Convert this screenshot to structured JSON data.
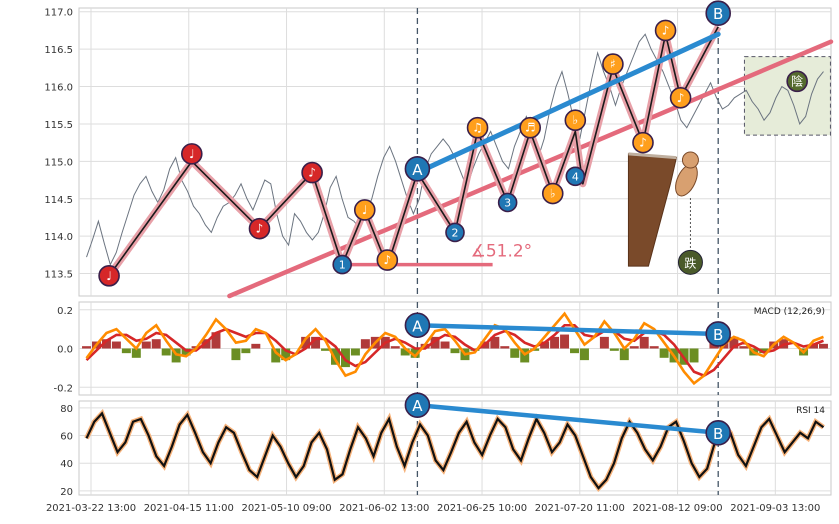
{
  "chart_data": [
    {
      "type": "line",
      "panel": "price",
      "ylim": [
        113.2,
        117.05
      ],
      "y_ticks": [
        113.5,
        114.0,
        114.5,
        115.0,
        115.5,
        116.0,
        116.5,
        117.0
      ],
      "y_tick_labels": [
        "113.5",
        "114.0",
        "114.5",
        "115.0",
        "115.5",
        "116.0",
        "116.5",
        "117.0"
      ],
      "series": [
        {
          "role": "price",
          "values": [
            113.72,
            113.95,
            114.2,
            113.9,
            113.62,
            113.78,
            114.05,
            114.3,
            114.55,
            114.7,
            114.8,
            114.6,
            114.45,
            114.62,
            114.9,
            115.05,
            114.75,
            114.6,
            114.4,
            114.3,
            114.15,
            114.05,
            114.25,
            114.4,
            114.45,
            114.55,
            114.7,
            114.5,
            114.35,
            114.55,
            114.75,
            114.7,
            114.3,
            114.0,
            113.88,
            114.3,
            114.2,
            114.05,
            113.95,
            114.05,
            114.3,
            114.65,
            114.8,
            114.5,
            114.25,
            114.2,
            114.1,
            114.3,
            114.5,
            114.8,
            115.05,
            115.2,
            115.0,
            114.75,
            114.5,
            114.3,
            114.5,
            114.9,
            115.1,
            115.2,
            115.3,
            115.2,
            115.05,
            114.85,
            114.65,
            114.9,
            115.1,
            115.25,
            115.4,
            115.2,
            115.0,
            114.9,
            115.2,
            115.4,
            115.6,
            115.4,
            115.05,
            115.3,
            115.7,
            116.0,
            116.2,
            115.9,
            115.55,
            115.3,
            115.7,
            116.1,
            116.45,
            116.2,
            116.0,
            115.75,
            116.0,
            116.2,
            116.4,
            116.6,
            116.7,
            116.5,
            116.35,
            116.2,
            116.0,
            115.8,
            115.55,
            115.45,
            115.6,
            115.75,
            115.9,
            116.05,
            115.85,
            115.7,
            115.75,
            115.85,
            115.9,
            115.95,
            115.8,
            115.7,
            115.55,
            115.65,
            115.85,
            116.0,
            115.95,
            115.75,
            115.5,
            115.6,
            115.9,
            116.1,
            116.2
          ]
        },
        {
          "role": "zigzag",
          "points": [
            [
              0.04,
              113.47
            ],
            [
              0.15,
              115.0
            ],
            [
              0.24,
              114.1
            ],
            [
              0.31,
              114.85
            ],
            [
              0.35,
              113.62
            ],
            [
              0.38,
              114.35
            ],
            [
              0.41,
              113.6
            ],
            [
              0.45,
              114.85
            ],
            [
              0.5,
              114.05
            ],
            [
              0.53,
              115.4
            ],
            [
              0.57,
              114.45
            ],
            [
              0.6,
              115.4
            ],
            [
              0.63,
              114.57
            ],
            [
              0.66,
              115.4
            ],
            [
              0.67,
              114.7
            ],
            [
              0.71,
              116.25
            ],
            [
              0.75,
              115.25
            ],
            [
              0.78,
              116.7
            ],
            [
              0.8,
              115.85
            ],
            [
              0.85,
              116.8
            ]
          ]
        },
        {
          "role": "trend",
          "from": [
            0.45,
            114.85
          ],
          "to": [
            0.85,
            116.7
          ]
        },
        {
          "role": "trend",
          "from": [
            0.2,
            113.2
          ],
          "to": [
            1.0,
            116.6
          ]
        },
        {
          "role": "horizontal",
          "from": [
            0.35,
            113.62
          ],
          "to": [
            0.55,
            113.62
          ]
        }
      ],
      "annotation_angle": "∡51.2°",
      "markers": [
        {
          "x": 0.04,
          "y": 113.47,
          "glyph": "♩",
          "fill": "#d62728"
        },
        {
          "x": 0.15,
          "y": 115.1,
          "glyph": "♩",
          "fill": "#d62728"
        },
        {
          "x": 0.24,
          "y": 114.1,
          "glyph": "♪",
          "fill": "#d62728"
        },
        {
          "x": 0.31,
          "y": 114.85,
          "glyph": "♪",
          "fill": "#d62728"
        },
        {
          "x": 0.35,
          "y": 113.62,
          "glyph": "1",
          "fill": "#1f77b4"
        },
        {
          "x": 0.38,
          "y": 114.35,
          "glyph": "♩",
          "fill": "#ff9f1c"
        },
        {
          "x": 0.41,
          "y": 113.68,
          "glyph": "♪",
          "fill": "#ff9f1c"
        },
        {
          "x": 0.45,
          "y": 114.9,
          "glyph": "A",
          "fill": "#1f77b4"
        },
        {
          "x": 0.5,
          "y": 114.05,
          "glyph": "2",
          "fill": "#1f77b4"
        },
        {
          "x": 0.53,
          "y": 115.45,
          "glyph": "♫",
          "fill": "#ff9f1c"
        },
        {
          "x": 0.57,
          "y": 114.45,
          "glyph": "3",
          "fill": "#1f77b4"
        },
        {
          "x": 0.6,
          "y": 115.45,
          "glyph": "♬",
          "fill": "#ff9f1c"
        },
        {
          "x": 0.63,
          "y": 114.57,
          "glyph": "♭",
          "fill": "#ff9f1c"
        },
        {
          "x": 0.66,
          "y": 115.55,
          "glyph": "♭",
          "fill": "#ff9f1c"
        },
        {
          "x": 0.66,
          "y": 114.8,
          "glyph": "4",
          "fill": "#1f77b4"
        },
        {
          "x": 0.71,
          "y": 116.3,
          "glyph": "♯",
          "fill": "#ff9f1c"
        },
        {
          "x": 0.75,
          "y": 115.25,
          "glyph": "♪",
          "fill": "#ff9f1c"
        },
        {
          "x": 0.78,
          "y": 116.75,
          "glyph": "♪",
          "fill": "#ff9f1c"
        },
        {
          "x": 0.8,
          "y": 115.85,
          "glyph": "♪",
          "fill": "#ff9f1c"
        },
        {
          "x": 0.85,
          "y": 116.98,
          "glyph": "B",
          "fill": "#1f77b4"
        },
        {
          "x": 0.955,
          "y": 116.07,
          "glyph": "陰",
          "fill": "#556b2f"
        }
      ],
      "dashed_vlines_x": [
        0.45,
        0.85
      ]
    },
    {
      "type": "line",
      "panel": "macd",
      "title": "MACD (12,26,9)",
      "ylim": [
        -0.24,
        0.24
      ],
      "y_ticks": [
        -0.2,
        0.0,
        0.2
      ],
      "y_tick_labels": [
        "-0.2",
        "0.0",
        "0.2"
      ],
      "series": [
        {
          "role": "macd",
          "color": "#ff8c00",
          "values": [
            -0.05,
            0.02,
            0.08,
            0.1,
            0.05,
            0.0,
            0.08,
            0.12,
            0.04,
            -0.03,
            -0.04,
            0.0,
            0.07,
            0.15,
            0.1,
            0.03,
            0.04,
            0.1,
            0.08,
            -0.02,
            -0.06,
            -0.03,
            0.05,
            0.1,
            0.04,
            -0.06,
            -0.14,
            -0.12,
            -0.03,
            0.03,
            0.08,
            0.06,
            0.0,
            -0.04,
            0.02,
            0.09,
            0.1,
            0.04,
            -0.03,
            -0.02,
            0.05,
            0.12,
            0.1,
            0.03,
            -0.03,
            0.0,
            0.06,
            0.12,
            0.18,
            0.1,
            0.02,
            0.06,
            0.14,
            0.08,
            0.0,
            0.05,
            0.13,
            0.1,
            0.03,
            -0.04,
            -0.12,
            -0.18,
            -0.14,
            -0.06,
            0.02,
            0.06,
            0.04,
            -0.02,
            -0.04,
            0.02,
            0.06,
            0.03,
            -0.02,
            0.04,
            0.06
          ]
        },
        {
          "role": "signal",
          "color": "#d62728",
          "values": [
            -0.06,
            -0.01,
            0.04,
            0.07,
            0.07,
            0.04,
            0.05,
            0.08,
            0.07,
            0.03,
            -0.01,
            -0.01,
            0.03,
            0.08,
            0.1,
            0.08,
            0.06,
            0.08,
            0.08,
            0.04,
            -0.01,
            -0.03,
            0.0,
            0.05,
            0.05,
            0.01,
            -0.06,
            -0.09,
            -0.07,
            -0.02,
            0.03,
            0.05,
            0.03,
            0.0,
            0.0,
            0.04,
            0.07,
            0.06,
            0.02,
            -0.01,
            0.02,
            0.07,
            0.09,
            0.07,
            0.03,
            0.01,
            0.03,
            0.07,
            0.12,
            0.12,
            0.07,
            0.06,
            0.09,
            0.09,
            0.05,
            0.04,
            0.08,
            0.09,
            0.07,
            0.02,
            -0.05,
            -0.12,
            -0.14,
            -0.11,
            -0.05,
            0.01,
            0.03,
            0.01,
            -0.02,
            -0.01,
            0.02,
            0.03,
            0.01,
            0.02,
            0.04
          ]
        }
      ],
      "divergence": [
        [
          0.45,
          0.12
        ],
        [
          0.85,
          0.075
        ]
      ],
      "markers": [
        {
          "x": 0.45,
          "y": 0.12,
          "glyph": "A",
          "fill": "#1f77b4"
        },
        {
          "x": 0.85,
          "y": 0.075,
          "glyph": "B",
          "fill": "#1f77b4"
        }
      ]
    },
    {
      "type": "line",
      "panel": "rsi",
      "title": "RSI 14",
      "ylim": [
        17,
        85
      ],
      "y_ticks": [
        20,
        40,
        60,
        80
      ],
      "y_tick_labels": [
        "20",
        "40",
        "60",
        "80"
      ],
      "series": [
        {
          "role": "rsi",
          "values": [
            58,
            70,
            76,
            62,
            48,
            55,
            70,
            72,
            60,
            45,
            38,
            52,
            68,
            75,
            62,
            48,
            40,
            55,
            66,
            62,
            48,
            35,
            30,
            45,
            60,
            52,
            40,
            30,
            38,
            55,
            62,
            50,
            28,
            32,
            50,
            66,
            58,
            45,
            62,
            72,
            52,
            38,
            55,
            68,
            60,
            42,
            35,
            48,
            62,
            70,
            55,
            46,
            60,
            72,
            66,
            50,
            42,
            58,
            72,
            62,
            48,
            55,
            68,
            60,
            45,
            30,
            22,
            28,
            40,
            58,
            70,
            62,
            50,
            42,
            52,
            66,
            70,
            56,
            40,
            30,
            36,
            55,
            68,
            62,
            46,
            38,
            52,
            66,
            72,
            60,
            48,
            55,
            62,
            58,
            70,
            66
          ]
        }
      ],
      "divergence": [
        [
          0.45,
          82
        ],
        [
          0.85,
          62
        ]
      ],
      "markers": [
        {
          "x": 0.45,
          "y": 82,
          "glyph": "A",
          "fill": "#1f77b4"
        },
        {
          "x": 0.85,
          "y": 62,
          "glyph": "B",
          "fill": "#1f77b4"
        }
      ]
    }
  ],
  "x_axis": {
    "labels": [
      "2021-03-22 13:00",
      "2021-04-15 11:00",
      "2021-05-10 09:00",
      "2021-06-02 13:00",
      "2021-06-25 10:00",
      "2021-07-20 11:00",
      "2021-08-12 09:00",
      "2021-09-03 13:00"
    ],
    "label_positions": [
      0.0,
      0.13,
      0.26,
      0.39,
      0.52,
      0.65,
      0.78,
      0.91
    ]
  },
  "colors": {
    "price": "#6b7480",
    "zigzag_outer": "#e8a0a8",
    "zigzag_inner": "#1a1a1a",
    "trend_blue": "#2a8ad0",
    "trend_pink": "#e46a7c",
    "grid": "#dddddd",
    "bar_pos": "#b03a3a",
    "bar_neg": "#6b8e23",
    "rsi_glow": "#f6b27a",
    "rsi_line": "#111111"
  },
  "decor": {
    "cliff_icon": "cliff",
    "dog_icon": "dog",
    "bottom_badge": "跌"
  }
}
